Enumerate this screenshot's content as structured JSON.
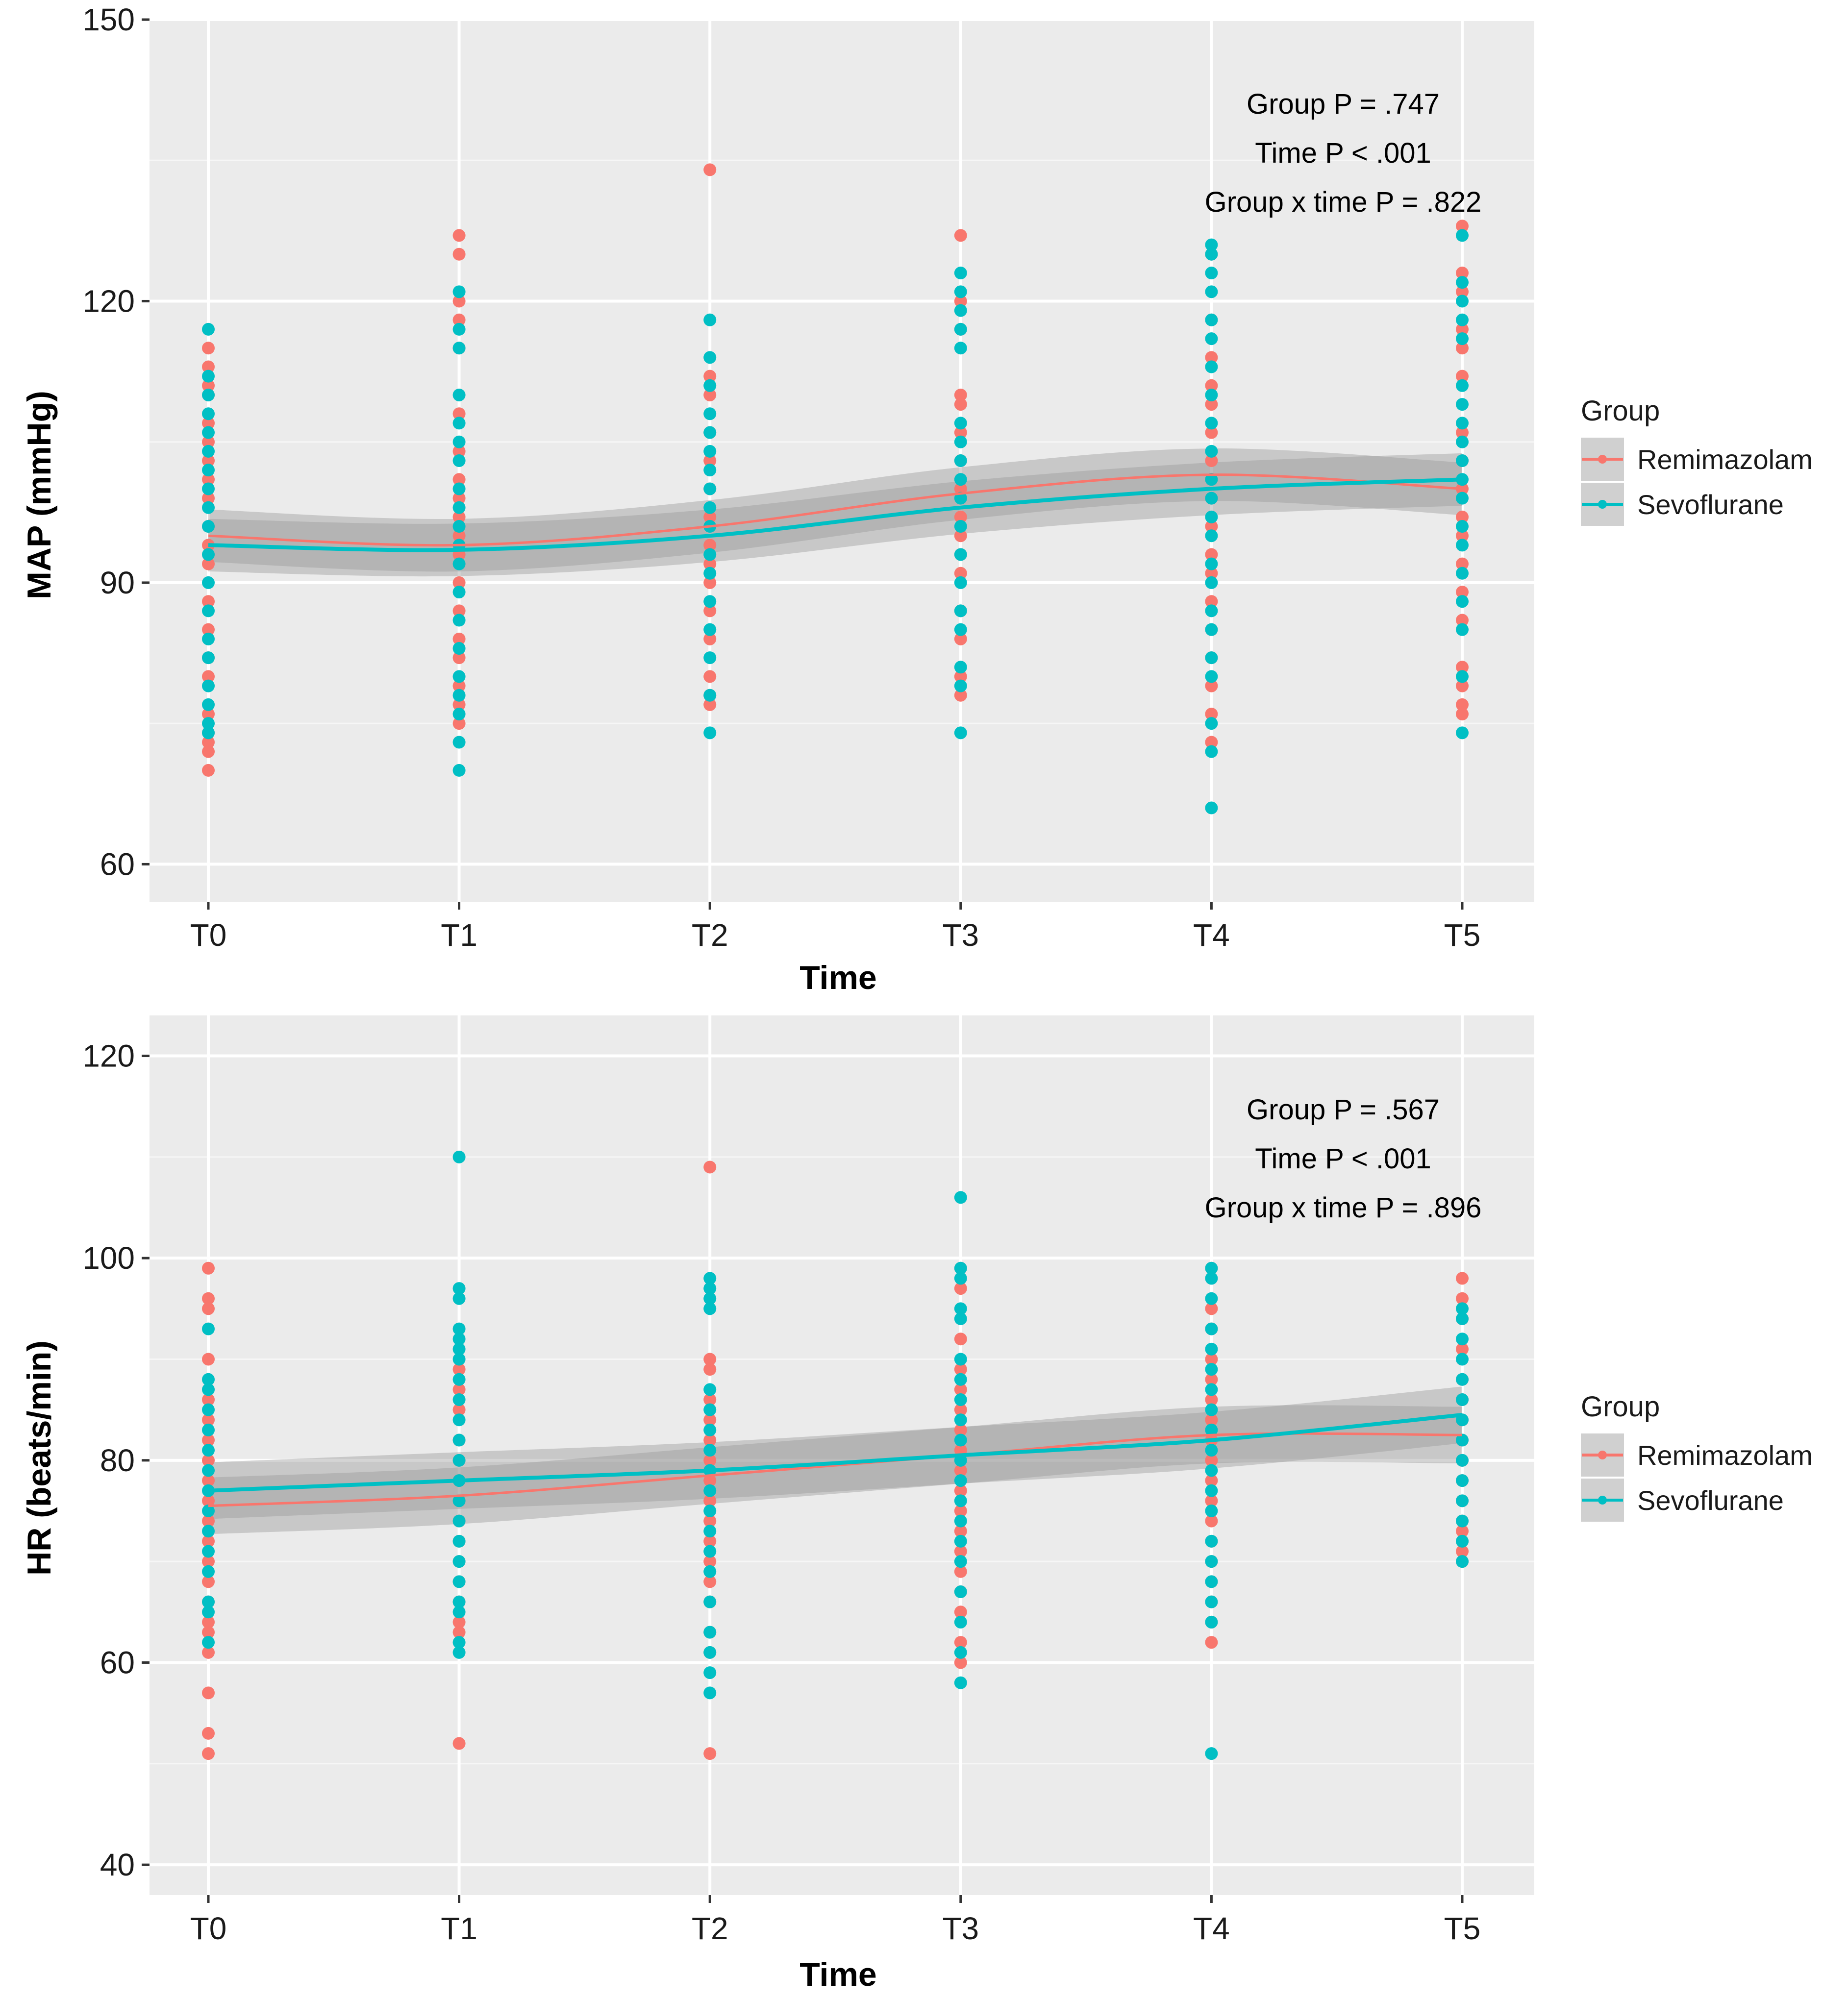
{
  "chart_data": [
    {
      "type": "scatter",
      "id": "map",
      "xlabel": "Time",
      "ylabel": "MAP (mmHg)",
      "categories": [
        "T0",
        "T1",
        "T2",
        "T3",
        "T4",
        "T5"
      ],
      "ylim": [
        56,
        150
      ],
      "yticks": [
        60,
        90,
        120,
        150
      ],
      "grid": true,
      "legend_position": "right",
      "legend": {
        "title": "Group",
        "entries": [
          "Remimazolam",
          "Sevoflurane"
        ]
      },
      "annotations": [
        "Group P = .747",
        "Time P < .001",
        "Group x time P = .822"
      ],
      "series": [
        {
          "name": "Remimazolam",
          "color": "#F8766D",
          "points": [
            [
              96,
              99,
              101,
              103,
              105,
              107,
              110,
              111,
              113,
              115,
              94,
              92,
              88,
              85,
              82,
              80,
              76,
              74,
              73,
              72,
              70
            ],
            [
              127,
              125,
              120,
              118,
              115,
              108,
              104,
              101,
              99,
              97,
              95,
              93,
              90,
              87,
              84,
              82,
              79,
              77,
              75
            ],
            [
              134,
              112,
              110,
              106,
              103,
              100,
              97,
              94,
              92,
              90,
              87,
              84,
              80,
              78,
              77
            ],
            [
              127,
              120,
              117,
              110,
              109,
              106,
              103,
              100,
              97,
              95,
              93,
              91,
              87,
              84,
              80,
              78
            ],
            [
              125,
              118,
              114,
              111,
              109,
              106,
              103,
              101,
              99,
              96,
              93,
              91,
              88,
              85,
              82,
              79,
              76,
              73
            ],
            [
              128,
              123,
              121,
              117,
              115,
              112,
              106,
              103,
              100,
              97,
              95,
              92,
              89,
              86,
              81,
              79,
              77,
              76
            ]
          ],
          "trend": [
            95.0,
            94.0,
            96.0,
            99.5,
            101.5,
            100.0
          ]
        },
        {
          "name": "Sevoflurane",
          "color": "#00BFC4",
          "points": [
            [
              117,
              112,
              110,
              108,
              106,
              104,
              102,
              100,
              98,
              96,
              93,
              90,
              87,
              84,
              82,
              79,
              77,
              75,
              74
            ],
            [
              121,
              117,
              115,
              110,
              107,
              105,
              103,
              100,
              98,
              96,
              94,
              92,
              89,
              86,
              83,
              80,
              78,
              76,
              73,
              70
            ],
            [
              118,
              114,
              111,
              108,
              106,
              104,
              102,
              100,
              98,
              96,
              93,
              91,
              88,
              85,
              82,
              78,
              74
            ],
            [
              123,
              121,
              119,
              117,
              115,
              107,
              105,
              103,
              101,
              99,
              96,
              93,
              90,
              87,
              85,
              81,
              79,
              74
            ],
            [
              126,
              125,
              123,
              121,
              118,
              116,
              113,
              110,
              107,
              104,
              101,
              99,
              97,
              95,
              92,
              90,
              87,
              85,
              82,
              80,
              75,
              72,
              66
            ],
            [
              127,
              122,
              120,
              118,
              116,
              111,
              109,
              107,
              105,
              103,
              101,
              99,
              96,
              94,
              91,
              88,
              85,
              80,
              74
            ]
          ],
          "trend": [
            94.0,
            93.5,
            95.0,
            98.0,
            100.0,
            101.0
          ]
        }
      ]
    },
    {
      "type": "scatter",
      "id": "hr",
      "xlabel": "Time",
      "ylabel": "HR (beats/min)",
      "categories": [
        "T0",
        "T1",
        "T2",
        "T3",
        "T4",
        "T5"
      ],
      "ylim": [
        37,
        124
      ],
      "yticks": [
        40,
        60,
        80,
        100,
        120
      ],
      "grid": true,
      "legend_position": "right",
      "legend": {
        "title": "Group",
        "entries": [
          "Remimazolam",
          "Sevoflurane"
        ]
      },
      "annotations": [
        "Group P = .567",
        "Time P < .001",
        "Group x time P = .896"
      ],
      "series": [
        {
          "name": "Remimazolam",
          "color": "#F8766D",
          "points": [
            [
              99,
              96,
              95,
              90,
              86,
              84,
              82,
              80,
              78,
              76,
              74,
              72,
              70,
              68,
              66,
              64,
              63,
              61,
              57,
              53,
              51
            ],
            [
              89,
              87,
              85,
              82,
              80,
              78,
              76,
              74,
              72,
              70,
              68,
              66,
              64,
              63,
              52
            ],
            [
              109,
              90,
              89,
              86,
              84,
              82,
              80,
              78,
              76,
              74,
              72,
              70,
              68,
              66,
              63,
              61,
              51
            ],
            [
              99,
              97,
              92,
              89,
              87,
              85,
              83,
              81,
              79,
              77,
              75,
              73,
              71,
              69,
              67,
              65,
              62,
              60
            ],
            [
              99,
              95,
              93,
              90,
              88,
              86,
              84,
              82,
              80,
              78,
              76,
              74,
              72,
              70,
              68,
              66,
              64,
              62
            ],
            [
              98,
              96,
              94,
              91,
              88,
              86,
              84,
              82,
              80,
              78,
              76,
              74,
              73,
              72,
              71,
              70
            ]
          ],
          "trend": [
            75.5,
            76.5,
            78.5,
            80.5,
            82.5,
            82.5
          ]
        },
        {
          "name": "Sevoflurane",
          "color": "#00BFC4",
          "points": [
            [
              93,
              88,
              87,
              85,
              83,
              81,
              79,
              77,
              75,
              73,
              71,
              69,
              66,
              65,
              62
            ],
            [
              110,
              97,
              96,
              93,
              92,
              91,
              90,
              88,
              86,
              84,
              82,
              80,
              78,
              76,
              74,
              72,
              70,
              68,
              66,
              65,
              62,
              61
            ],
            [
              98,
              97,
              96,
              95,
              87,
              85,
              83,
              81,
              79,
              77,
              75,
              73,
              71,
              69,
              66,
              63,
              61,
              59,
              57
            ],
            [
              106,
              99,
              98,
              95,
              94,
              90,
              88,
              86,
              84,
              82,
              80,
              78,
              76,
              74,
              72,
              70,
              67,
              64,
              61,
              58
            ],
            [
              99,
              98,
              96,
              93,
              91,
              89,
              87,
              85,
              83,
              81,
              79,
              77,
              75,
              72,
              70,
              68,
              66,
              64,
              51
            ],
            [
              95,
              94,
              92,
              90,
              88,
              86,
              84,
              82,
              80,
              78,
              76,
              74,
              72,
              70
            ]
          ],
          "trend": [
            77.0,
            78.0,
            79.0,
            80.5,
            82.0,
            84.5
          ]
        }
      ]
    }
  ]
}
